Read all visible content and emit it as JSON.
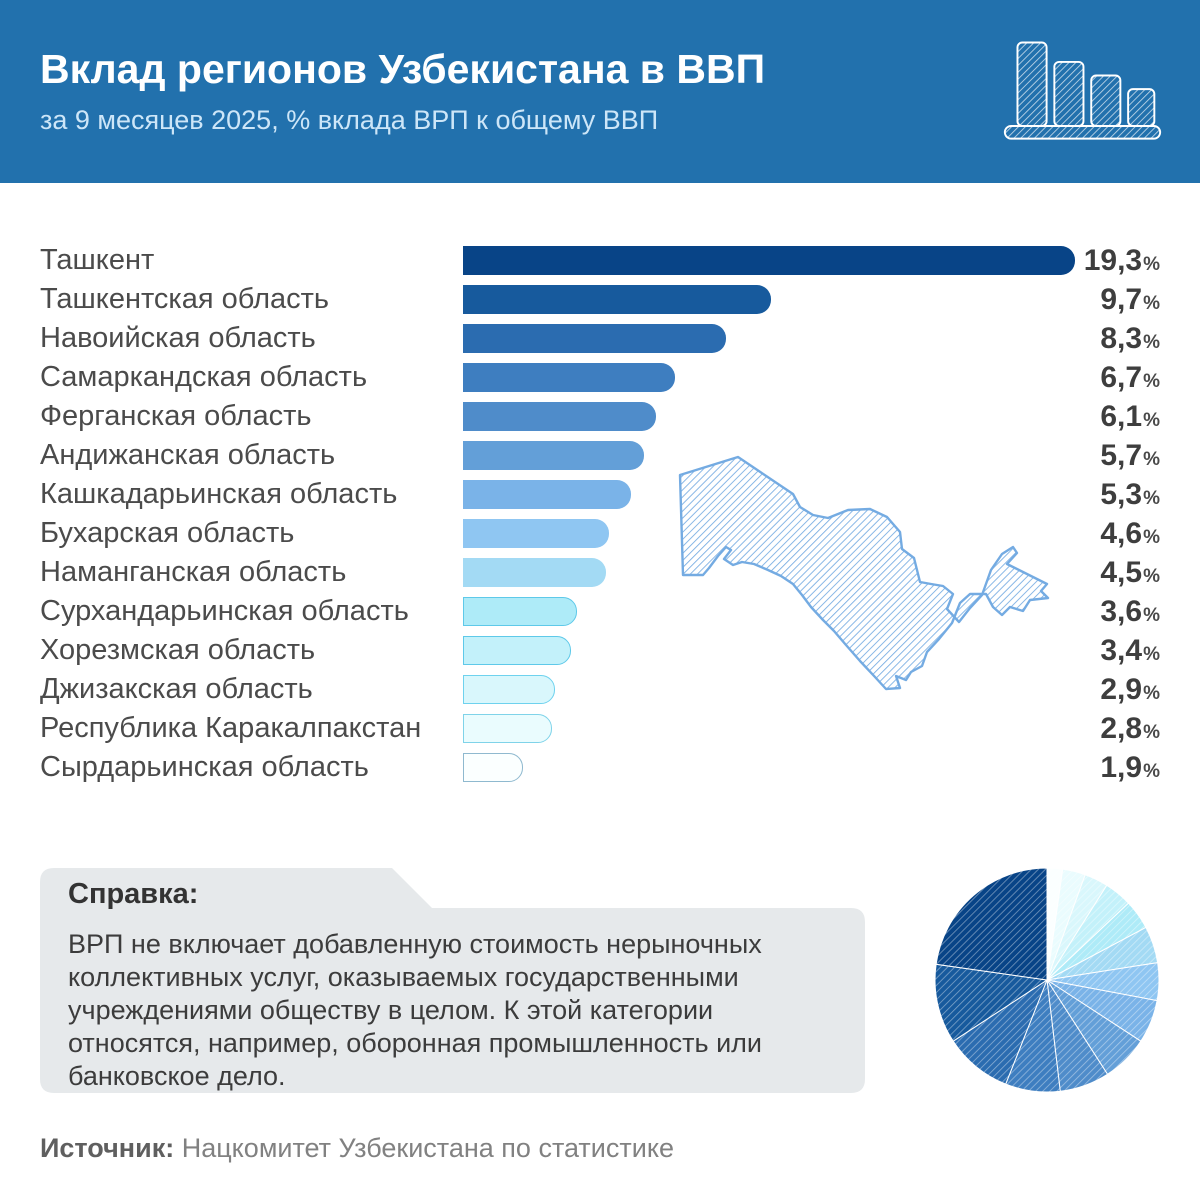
{
  "header": {
    "title": "Вклад регионов Узбекистана в ВВП",
    "subtitle": "за 9 месяцев 2025, % вклада ВРП к общему ВВП",
    "bg_color": "#2271ad",
    "icon": "bar-chart-sketch-icon"
  },
  "chart_data": [
    {
      "type": "bar",
      "orientation": "horizontal",
      "title": "Вклад регионов Узбекистана в ВВП",
      "subtitle": "за 9 месяцев 2025, % вклада ВРП к общему ВВП",
      "unit": "%",
      "decimal_separator": ",",
      "xlim": [
        0,
        19.3
      ],
      "grid": false,
      "categories": [
        "Ташкент",
        "Ташкентская область",
        "Навоийская область",
        "Самаркандская область",
        "Ферганская область",
        "Андижанская область",
        "Кашкадарьинская область",
        "Бухарская область",
        "Наманганская область",
        "Сурхандарьинская область",
        "Хорезмская область",
        "Джизакская область",
        "Республика Каракалпакстан",
        "Сырдарьинская область"
      ],
      "values": [
        19.3,
        9.7,
        8.3,
        6.7,
        6.1,
        5.7,
        5.3,
        4.6,
        4.5,
        3.6,
        3.4,
        2.9,
        2.8,
        1.9
      ],
      "values_display": [
        "19,3",
        "9,7",
        "8,3",
        "6,7",
        "6,1",
        "5,7",
        "5,3",
        "4,6",
        "4,5",
        "3,6",
        "3,4",
        "2,9",
        "2,8",
        "1,9"
      ],
      "bar_colors": [
        "#084487",
        "#175a9d",
        "#2b6cb0",
        "#3e7ec0",
        "#4f8cca",
        "#639fd8",
        "#7ab3e8",
        "#8fc6f2",
        "#a3daf4",
        "#aeebf8",
        "#c3f1fa",
        "#d9f7fc",
        "#eafcfe",
        "#fbffff"
      ],
      "bar_border_colors": [
        null,
        null,
        null,
        null,
        null,
        null,
        null,
        null,
        null,
        "#5ec9e9",
        "#5ec9e9",
        "#6ed2ee",
        "#7fd3e9",
        "#8fb9cf"
      ]
    },
    {
      "type": "pie",
      "description": "Доли регионов в ВВП, эскизная штриховка, от самой светлой (1,9%) по часовой стрелке от 12 часов до самой тёмной (19,3%)",
      "start_angle_deg": 0,
      "direction": "clockwise",
      "values": [
        1.9,
        2.8,
        2.9,
        3.4,
        3.6,
        4.5,
        4.6,
        5.3,
        5.7,
        6.1,
        6.7,
        8.3,
        9.7,
        19.3
      ],
      "labels": [
        "Сырдарьинская область",
        "Республика Каракалпакстан",
        "Джизакская область",
        "Хорезмская область",
        "Сурхандарьинская область",
        "Наманганская область",
        "Бухарская область",
        "Кашкадарьинская область",
        "Андижанская область",
        "Ферганская область",
        "Самаркандская область",
        "Навоийская область",
        "Ташкентская область",
        "Ташкент"
      ],
      "colors": [
        "#fbffff",
        "#eafcfe",
        "#d9f7fc",
        "#c3f1fa",
        "#aeebf8",
        "#a3daf4",
        "#8fc6f2",
        "#7ab3e8",
        "#639fd8",
        "#4f8cca",
        "#3e7ec0",
        "#2b6cb0",
        "#175a9d",
        "#084487"
      ]
    }
  ],
  "map": {
    "name": "uzbekistan-map",
    "style": "sketch-hatch",
    "stroke_color": "#74abe2"
  },
  "note": {
    "heading": "Справка:",
    "body": "ВРП не включает добавленную стоимость нерыночных коллективных услуг, оказываемых государственными учреждениями обществу в целом. К этой категории относятся, например, оборонная промышленность или банковское дело.",
    "bg_color": "#e6e9eb"
  },
  "source": {
    "label": "Источник:",
    "text": " Нацкомитет Узбекистана по статистике"
  }
}
